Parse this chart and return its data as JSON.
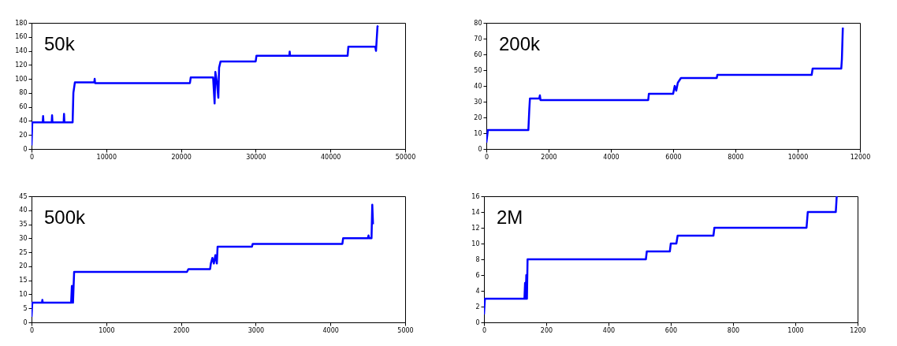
{
  "chart_data": [
    {
      "type": "line",
      "title": "50k",
      "xlim": [
        0,
        50000
      ],
      "ylim": [
        0,
        180
      ],
      "xticks": [
        0,
        10000,
        20000,
        30000,
        40000,
        50000
      ],
      "yticks": [
        0,
        20,
        40,
        60,
        80,
        100,
        120,
        140,
        160,
        180
      ],
      "grid": false,
      "x": [
        0,
        100,
        1500,
        1550,
        1600,
        2700,
        2750,
        2800,
        4300,
        4350,
        4400,
        5500,
        5600,
        5800,
        8400,
        8450,
        8500,
        21200,
        21300,
        24300,
        24500,
        24600,
        24800,
        25000,
        25100,
        25300,
        30000,
        30100,
        34500,
        34550,
        34600,
        42300,
        42400,
        46000,
        46100,
        46300,
        46400
      ],
      "series": [
        {
          "color": "#0000ff",
          "values": [
            5,
            38,
            38,
            47,
            38,
            38,
            48,
            38,
            38,
            50,
            38,
            38,
            80,
            95,
            95,
            100,
            94,
            94,
            102,
            102,
            65,
            110,
            96,
            73,
            116,
            125,
            125,
            133,
            133,
            139,
            133,
            133,
            146,
            146,
            140,
            175,
            176
          ]
        }
      ]
    },
    {
      "type": "line",
      "title": "200k",
      "xlim": [
        0,
        12000
      ],
      "ylim": [
        0,
        80
      ],
      "xticks": [
        0,
        2000,
        4000,
        6000,
        8000,
        10000,
        12000
      ],
      "yticks": [
        0,
        10,
        20,
        30,
        40,
        50,
        60,
        70,
        80
      ],
      "grid": false,
      "x": [
        0,
        50,
        1350,
        1380,
        1400,
        1700,
        1720,
        1740,
        5200,
        5220,
        6000,
        6020,
        6050,
        6100,
        6150,
        6250,
        7400,
        7420,
        10450,
        10480,
        11400,
        11420,
        11450
      ],
      "series": [
        {
          "color": "#0000ff",
          "values": [
            4,
            12,
            12,
            25,
            32,
            32,
            34,
            31,
            31,
            35,
            35,
            37,
            40,
            37,
            42,
            45,
            45,
            47,
            47,
            51,
            51,
            57,
            77
          ]
        }
      ]
    },
    {
      "type": "line",
      "title": "500k",
      "xlim": [
        0,
        5000
      ],
      "ylim": [
        0,
        45
      ],
      "xticks": [
        0,
        1000,
        2000,
        3000,
        4000,
        5000
      ],
      "yticks": [
        0,
        5,
        10,
        15,
        20,
        25,
        30,
        35,
        40,
        45
      ],
      "grid": false,
      "x": [
        0,
        10,
        140,
        145,
        150,
        530,
        540,
        555,
        570,
        2080,
        2100,
        2390,
        2400,
        2420,
        2440,
        2460,
        2480,
        2490,
        2950,
        2960,
        4160,
        4170,
        4500,
        4510,
        4520,
        4550,
        4560,
        4570
      ],
      "series": [
        {
          "color": "#0000ff",
          "values": [
            2,
            7,
            7,
            8,
            7,
            7,
            13,
            7,
            18,
            18,
            19,
            19,
            21,
            23,
            21,
            24,
            21,
            27,
            27,
            28,
            28,
            30,
            30,
            31,
            30,
            30,
            42,
            35
          ]
        }
      ]
    },
    {
      "type": "line",
      "title": "2M",
      "xlim": [
        0,
        1200
      ],
      "ylim": [
        0,
        16
      ],
      "xticks": [
        0,
        200,
        400,
        600,
        800,
        1000,
        1200
      ],
      "yticks": [
        0,
        2,
        4,
        6,
        8,
        10,
        12,
        14,
        16
      ],
      "grid": false,
      "x": [
        0,
        3,
        130,
        132,
        134,
        136,
        138,
        140,
        520,
        523,
        597,
        600,
        618,
        622,
        737,
        740,
        1036,
        1040,
        1130,
        1133
      ],
      "series": [
        {
          "color": "#0000ff",
          "values": [
            1,
            3,
            3,
            5,
            3,
            6,
            3,
            8,
            8,
            9,
            9,
            10,
            10,
            11,
            11,
            12,
            12,
            14,
            14,
            16
          ]
        }
      ]
    }
  ]
}
